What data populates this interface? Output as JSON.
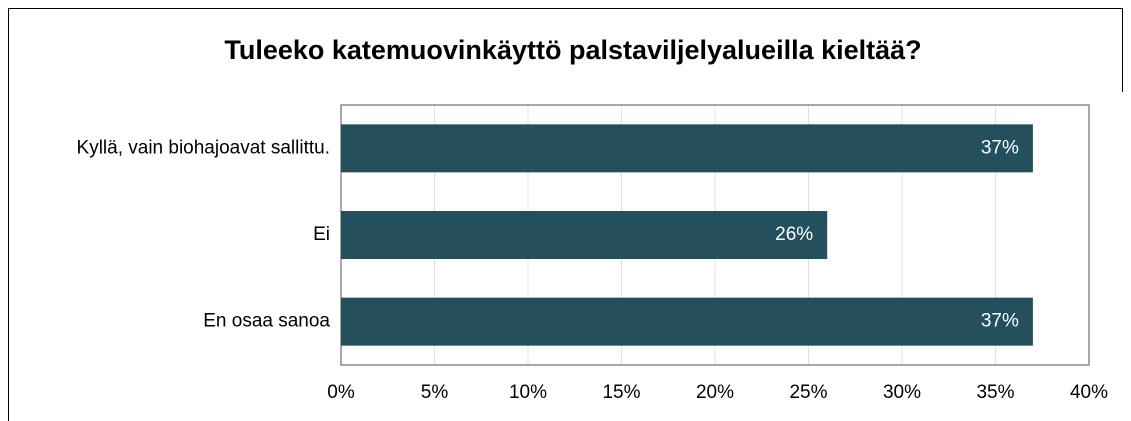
{
  "chart_data": {
    "type": "bar",
    "orientation": "horizontal",
    "title": "Tuleeko katemuovinkäyttö palstaviljelyalueilla kieltää?",
    "categories": [
      "Kyllä, vain biohajoavat sallittu.",
      "Ei",
      "En osaa sanoa"
    ],
    "values": [
      37,
      26,
      37
    ],
    "value_labels": [
      "37%",
      "26%",
      "37%"
    ],
    "color": "#244f5d",
    "xlim": [
      0,
      40
    ],
    "xticks": [
      {
        "value": 0,
        "label": "0%"
      },
      {
        "value": 5,
        "label": "5%"
      },
      {
        "value": 10,
        "label": "10%"
      },
      {
        "value": 15,
        "label": "15%"
      },
      {
        "value": 20,
        "label": "20%"
      },
      {
        "value": 25,
        "label": "25%"
      },
      {
        "value": 30,
        "label": "30%"
      },
      {
        "value": 35,
        "label": "35%"
      },
      {
        "value": 40,
        "label": "40%"
      }
    ],
    "grid": true
  }
}
